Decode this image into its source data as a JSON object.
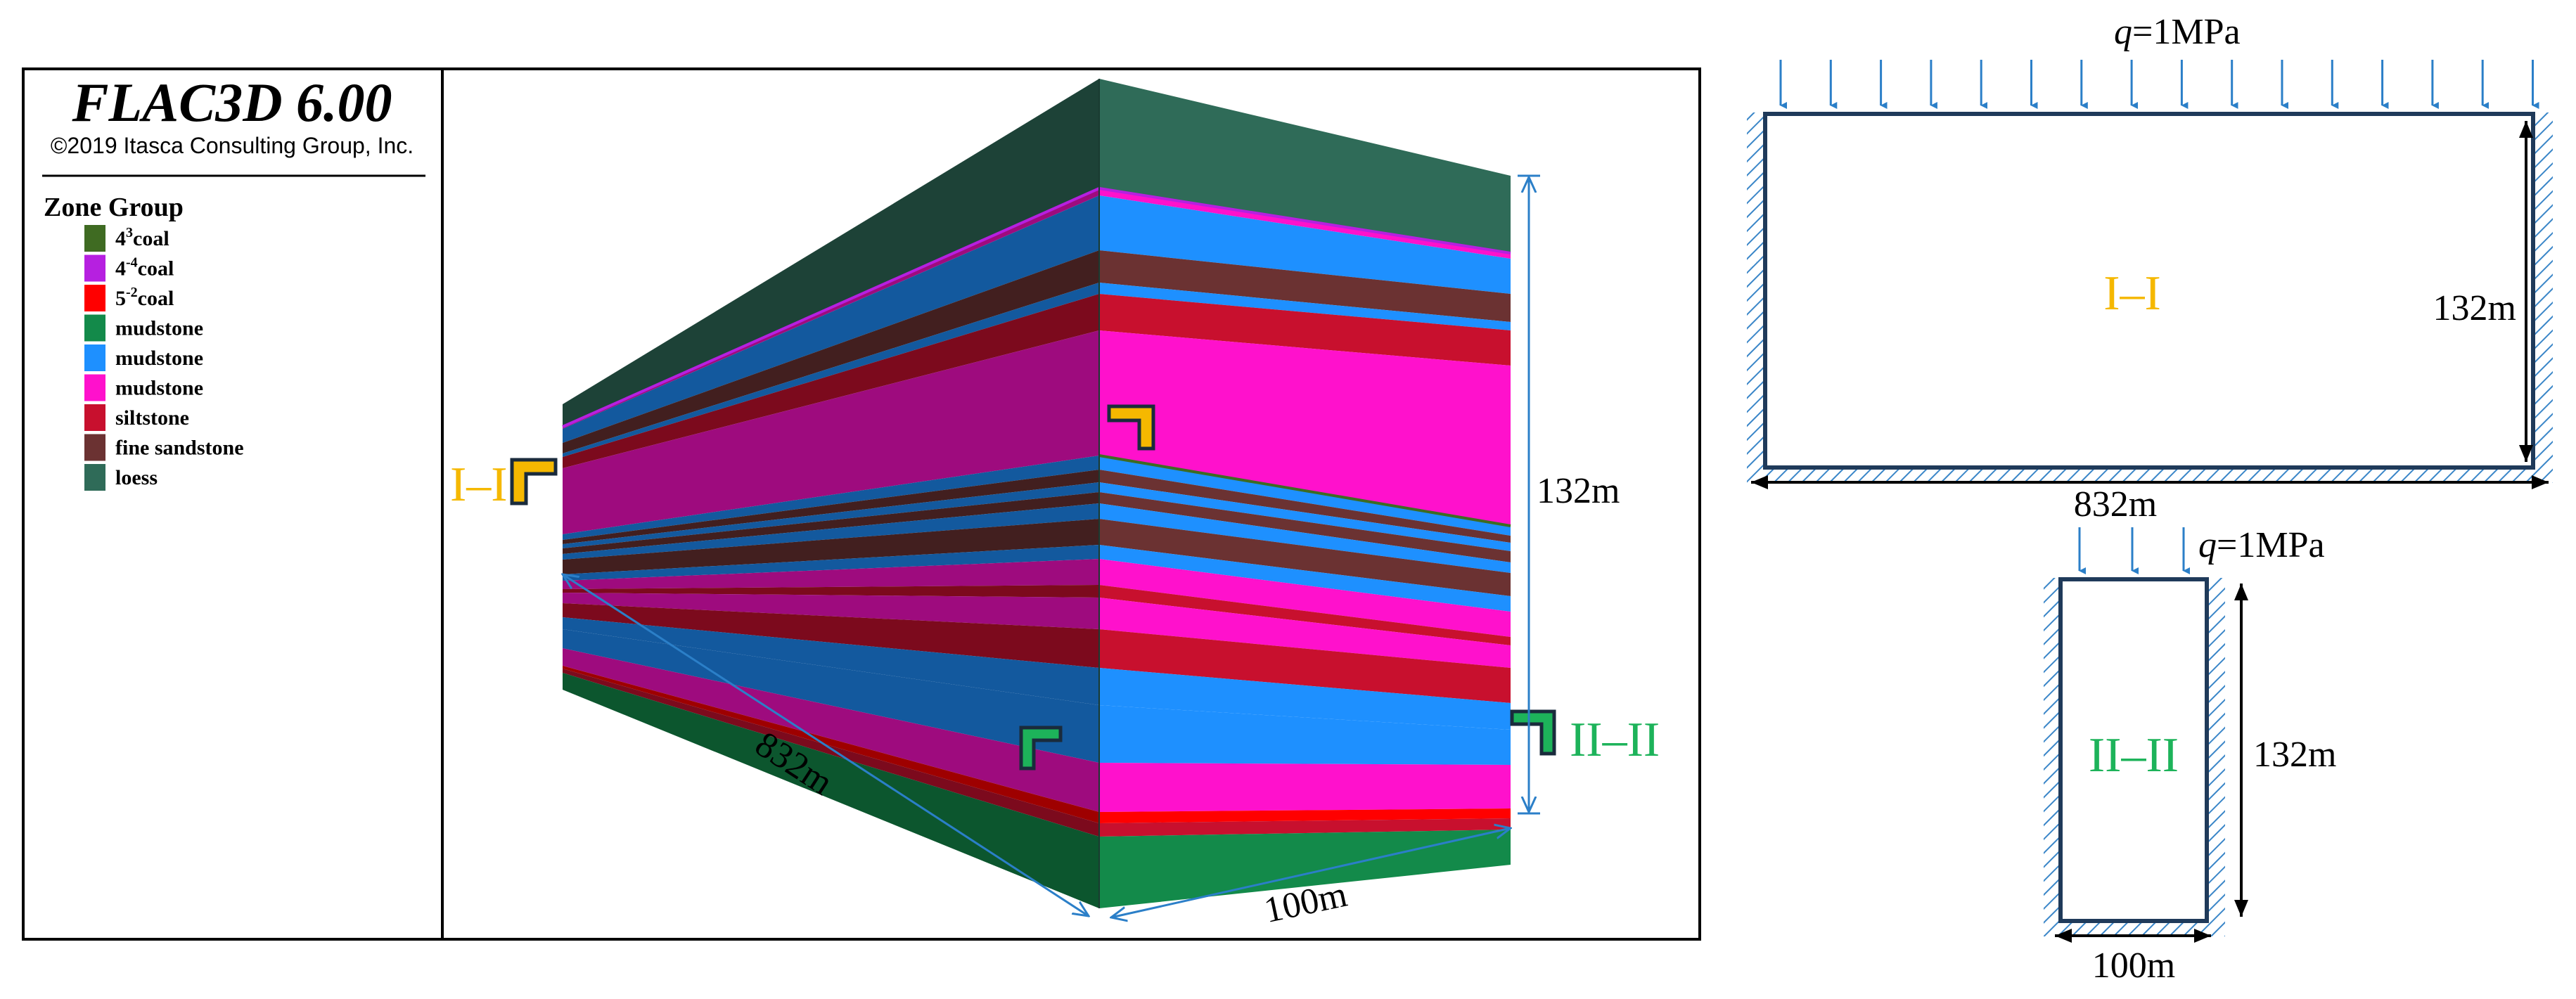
{
  "software": {
    "title": "FLAC3D 6.00",
    "copyright": "©2019 Itasca Consulting Group, Inc."
  },
  "legend": {
    "heading": "Zone Group",
    "items": [
      {
        "label": "coal",
        "base": "4",
        "sup": "3",
        "color": "#3f6b22"
      },
      {
        "label": "coal",
        "base": "4",
        "sup": "-4",
        "color": "#b620e0"
      },
      {
        "label": "coal",
        "base": "5",
        "sup": "-2",
        "color": "#ff0000"
      },
      {
        "label": "mudstone",
        "base": "",
        "sup": "",
        "color": "#138a4a"
      },
      {
        "label": "mudstone",
        "base": "",
        "sup": "",
        "color": "#1e90ff"
      },
      {
        "label": "mudstone",
        "base": "",
        "sup": "",
        "color": "#ff11cc"
      },
      {
        "label": "siltstone",
        "base": "",
        "sup": "",
        "color": "#c8102e"
      },
      {
        "label": "fine sandstone",
        "base": "",
        "sup": "",
        "color": "#6b3232"
      },
      {
        "label": "loess",
        "base": "",
        "sup": "",
        "color": "#2f6b58"
      }
    ]
  },
  "model": {
    "length_label": "832m",
    "width_label": "100m",
    "height_label": "132m",
    "section_1": "I–I",
    "section_2": "II–II"
  },
  "section_1_panel": {
    "load_q": "q",
    "load_value": "=1MPa",
    "title": "I–I",
    "height_label": "132m",
    "width_label": "832m"
  },
  "section_2_panel": {
    "load_q": "q",
    "load_value": "=1MPa",
    "title": "II–II",
    "height_label": "132m",
    "width_label": "100m"
  },
  "colors": {
    "yellow_marker": "#f5b800",
    "green_marker": "#1db35a",
    "arrow_blue": "#2b7fc8",
    "frame_navy": "#1f3a5a"
  }
}
